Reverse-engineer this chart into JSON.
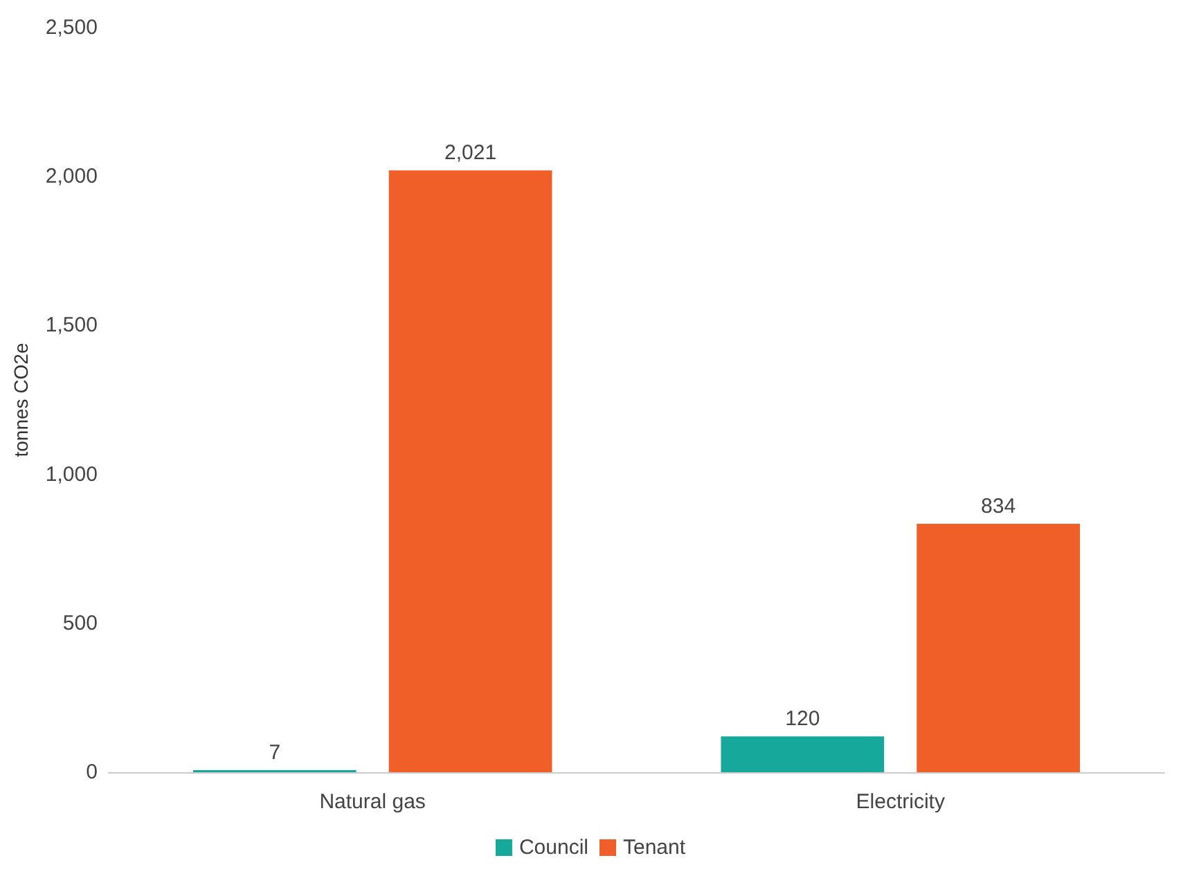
{
  "chart_data": {
    "type": "bar",
    "ylabel": "tonnes CO2e",
    "categories": [
      "Natural gas",
      "Electricity"
    ],
    "series": [
      {
        "name": "Council",
        "color": "#16a89b",
        "values": [
          7,
          120
        ],
        "value_labels": [
          "7",
          "120"
        ]
      },
      {
        "name": "Tenant",
        "color": "#f05f28",
        "values": [
          2021,
          834
        ],
        "value_labels": [
          "2,021",
          "834"
        ]
      }
    ],
    "ylim": [
      0,
      2500
    ],
    "yticks": [
      {
        "value": 0,
        "label": "0"
      },
      {
        "value": 500,
        "label": "500"
      },
      {
        "value": 1000,
        "label": "1,000"
      },
      {
        "value": 1500,
        "label": "1,500"
      },
      {
        "value": 2000,
        "label": "2,000"
      },
      {
        "value": 2500,
        "label": "2,500"
      }
    ],
    "grid": false,
    "legend": "bottom"
  }
}
